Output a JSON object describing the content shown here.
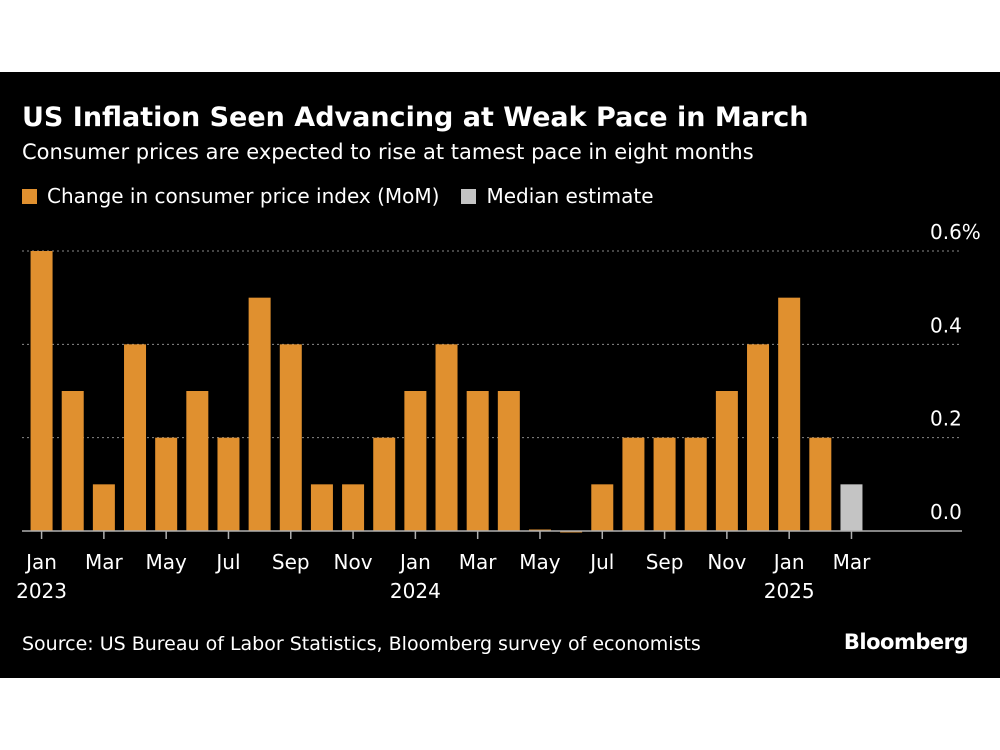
{
  "header": {
    "title": "US Inflation Seen Advancing at Weak Pace in March",
    "subtitle": "Consumer prices are expected to rise at tamest pace in eight months"
  },
  "legend": {
    "items": [
      {
        "label": "Change in consumer price index (MoM)",
        "color": "#e0902f"
      },
      {
        "label": "Median estimate",
        "color": "#c4c4c4"
      }
    ]
  },
  "footer": {
    "source": "Source: US Bureau of Labor Statistics, Bloomberg survey of economists",
    "brand": "Bloomberg"
  },
  "chart_data": {
    "type": "bar",
    "categories": [
      "Jan 2023",
      "Feb 2023",
      "Mar 2023",
      "Apr 2023",
      "May 2023",
      "Jun 2023",
      "Jul 2023",
      "Aug 2023",
      "Sep 2023",
      "Oct 2023",
      "Nov 2023",
      "Dec 2023",
      "Jan 2024",
      "Feb 2024",
      "Mar 2024",
      "Apr 2024",
      "May 2024",
      "Jun 2024",
      "Jul 2024",
      "Aug 2024",
      "Sep 2024",
      "Oct 2024",
      "Nov 2024",
      "Dec 2024",
      "Jan 2025",
      "Feb 2025",
      "Mar 2025"
    ],
    "series": [
      {
        "name": "Change in consumer price index (MoM)",
        "color": "#e0902f",
        "values": [
          0.6,
          0.3,
          0.1,
          0.4,
          0.2,
          0.3,
          0.2,
          0.5,
          0.4,
          0.1,
          0.1,
          0.2,
          0.3,
          0.4,
          0.3,
          0.3,
          0.0,
          -0.003,
          0.1,
          0.2,
          0.2,
          0.2,
          0.3,
          0.4,
          0.5,
          0.2,
          null
        ]
      },
      {
        "name": "Median estimate",
        "color": "#c4c4c4",
        "values": [
          null,
          null,
          null,
          null,
          null,
          null,
          null,
          null,
          null,
          null,
          null,
          null,
          null,
          null,
          null,
          null,
          null,
          null,
          null,
          null,
          null,
          null,
          null,
          null,
          null,
          null,
          0.1
        ]
      }
    ],
    "ylim": [
      0,
      0.6
    ],
    "yticks": [
      {
        "value": 0.6,
        "label": "0.6%"
      },
      {
        "value": 0.4,
        "label": "0.4"
      },
      {
        "value": 0.2,
        "label": "0.2"
      },
      {
        "value": 0.0,
        "label": "0.0"
      }
    ],
    "xticks": [
      {
        "index": 0,
        "label": "Jan",
        "year": "2023"
      },
      {
        "index": 2,
        "label": "Mar",
        "year": ""
      },
      {
        "index": 4,
        "label": "May",
        "year": ""
      },
      {
        "index": 6,
        "label": "Jul",
        "year": ""
      },
      {
        "index": 8,
        "label": "Sep",
        "year": ""
      },
      {
        "index": 10,
        "label": "Nov",
        "year": ""
      },
      {
        "index": 12,
        "label": "Jan",
        "year": "2024"
      },
      {
        "index": 14,
        "label": "Mar",
        "year": ""
      },
      {
        "index": 16,
        "label": "May",
        "year": ""
      },
      {
        "index": 18,
        "label": "Jul",
        "year": ""
      },
      {
        "index": 20,
        "label": "Sep",
        "year": ""
      },
      {
        "index": 22,
        "label": "Nov",
        "year": ""
      },
      {
        "index": 24,
        "label": "Jan",
        "year": "2025"
      },
      {
        "index": 26,
        "label": "Mar",
        "year": ""
      }
    ],
    "grid": true,
    "legend_position": "top-left"
  }
}
